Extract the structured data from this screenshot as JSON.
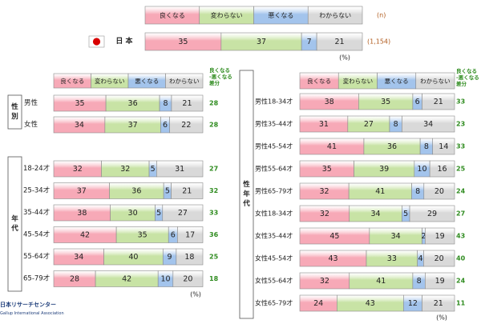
{
  "legend": {
    "categories": [
      "良くなる",
      "変わらない",
      "悪くなる",
      "わからない"
    ],
    "n_label": "(n)",
    "diff_label_lines": [
      "良くなる",
      "-悪くなる",
      "差分"
    ]
  },
  "colors": {
    "better": "#f7a9b7",
    "same": "#c8e3a5",
    "worse": "#a3c4ec",
    "unknown": "#d9d9d9",
    "diff_text": "#2e8b1e",
    "n_text": "#b05a1c",
    "flag_red": "#d80000"
  },
  "pct_label": "(%)",
  "logo": {
    "name_ja": "日本リサーチセンター",
    "name_en": "Gallup International Association"
  },
  "chart_data": [
    {
      "type": "bar",
      "id": "overall",
      "orientation": "horizontal",
      "stacked": "percent",
      "series_names": [
        "良くなる",
        "変わらない",
        "悪くなる",
        "わからない"
      ],
      "rows": [
        {
          "label": "日 本",
          "values": [
            35,
            37,
            7,
            21
          ],
          "n": "(1,154)"
        }
      ]
    },
    {
      "type": "bar",
      "id": "sex",
      "orientation": "horizontal",
      "stacked": "percent",
      "group_label": "性別",
      "rows": [
        {
          "label": "男性",
          "values": [
            35,
            36,
            8,
            21
          ],
          "diff": 28
        },
        {
          "label": "女性",
          "values": [
            34,
            37,
            6,
            22
          ],
          "diff": 28
        }
      ]
    },
    {
      "type": "bar",
      "id": "age",
      "orientation": "horizontal",
      "stacked": "percent",
      "group_label": "年代",
      "rows": [
        {
          "label": "18-24才",
          "values": [
            32,
            32,
            5,
            31
          ],
          "diff": 27
        },
        {
          "label": "25-34才",
          "values": [
            37,
            36,
            5,
            21
          ],
          "diff": 32
        },
        {
          "label": "35-44才",
          "values": [
            38,
            30,
            5,
            27
          ],
          "diff": 33
        },
        {
          "label": "45-54才",
          "values": [
            42,
            35,
            6,
            17
          ],
          "diff": 36
        },
        {
          "label": "55-64才",
          "values": [
            34,
            40,
            9,
            18
          ],
          "diff": 25
        },
        {
          "label": "65-79才",
          "values": [
            28,
            42,
            10,
            20
          ],
          "diff": 18
        }
      ]
    },
    {
      "type": "bar",
      "id": "sex-age",
      "orientation": "horizontal",
      "stacked": "percent",
      "group_label": "性年代",
      "rows": [
        {
          "label": "男性18-34才",
          "values": [
            38,
            35,
            6,
            21
          ],
          "diff": 33
        },
        {
          "label": "男性35-44才",
          "values": [
            31,
            27,
            8,
            34
          ],
          "diff": 23
        },
        {
          "label": "男性45-54才",
          "values": [
            41,
            36,
            8,
            14
          ],
          "diff": 33
        },
        {
          "label": "男性55-64才",
          "values": [
            35,
            39,
            10,
            16
          ],
          "diff": 25
        },
        {
          "label": "男性65-79才",
          "values": [
            32,
            41,
            8,
            20
          ],
          "diff": 24
        },
        {
          "label": "女性18-34才",
          "values": [
            32,
            34,
            5,
            29
          ],
          "diff": 27
        },
        {
          "label": "女性35-44才",
          "values": [
            45,
            34,
            2,
            19
          ],
          "diff": 43
        },
        {
          "label": "女性45-54才",
          "values": [
            43,
            33,
            4,
            20
          ],
          "diff": 40
        },
        {
          "label": "女性55-64才",
          "values": [
            32,
            41,
            8,
            19
          ],
          "diff": 24
        },
        {
          "label": "女性65-79才",
          "values": [
            24,
            43,
            12,
            21
          ],
          "diff": 11
        }
      ]
    }
  ]
}
